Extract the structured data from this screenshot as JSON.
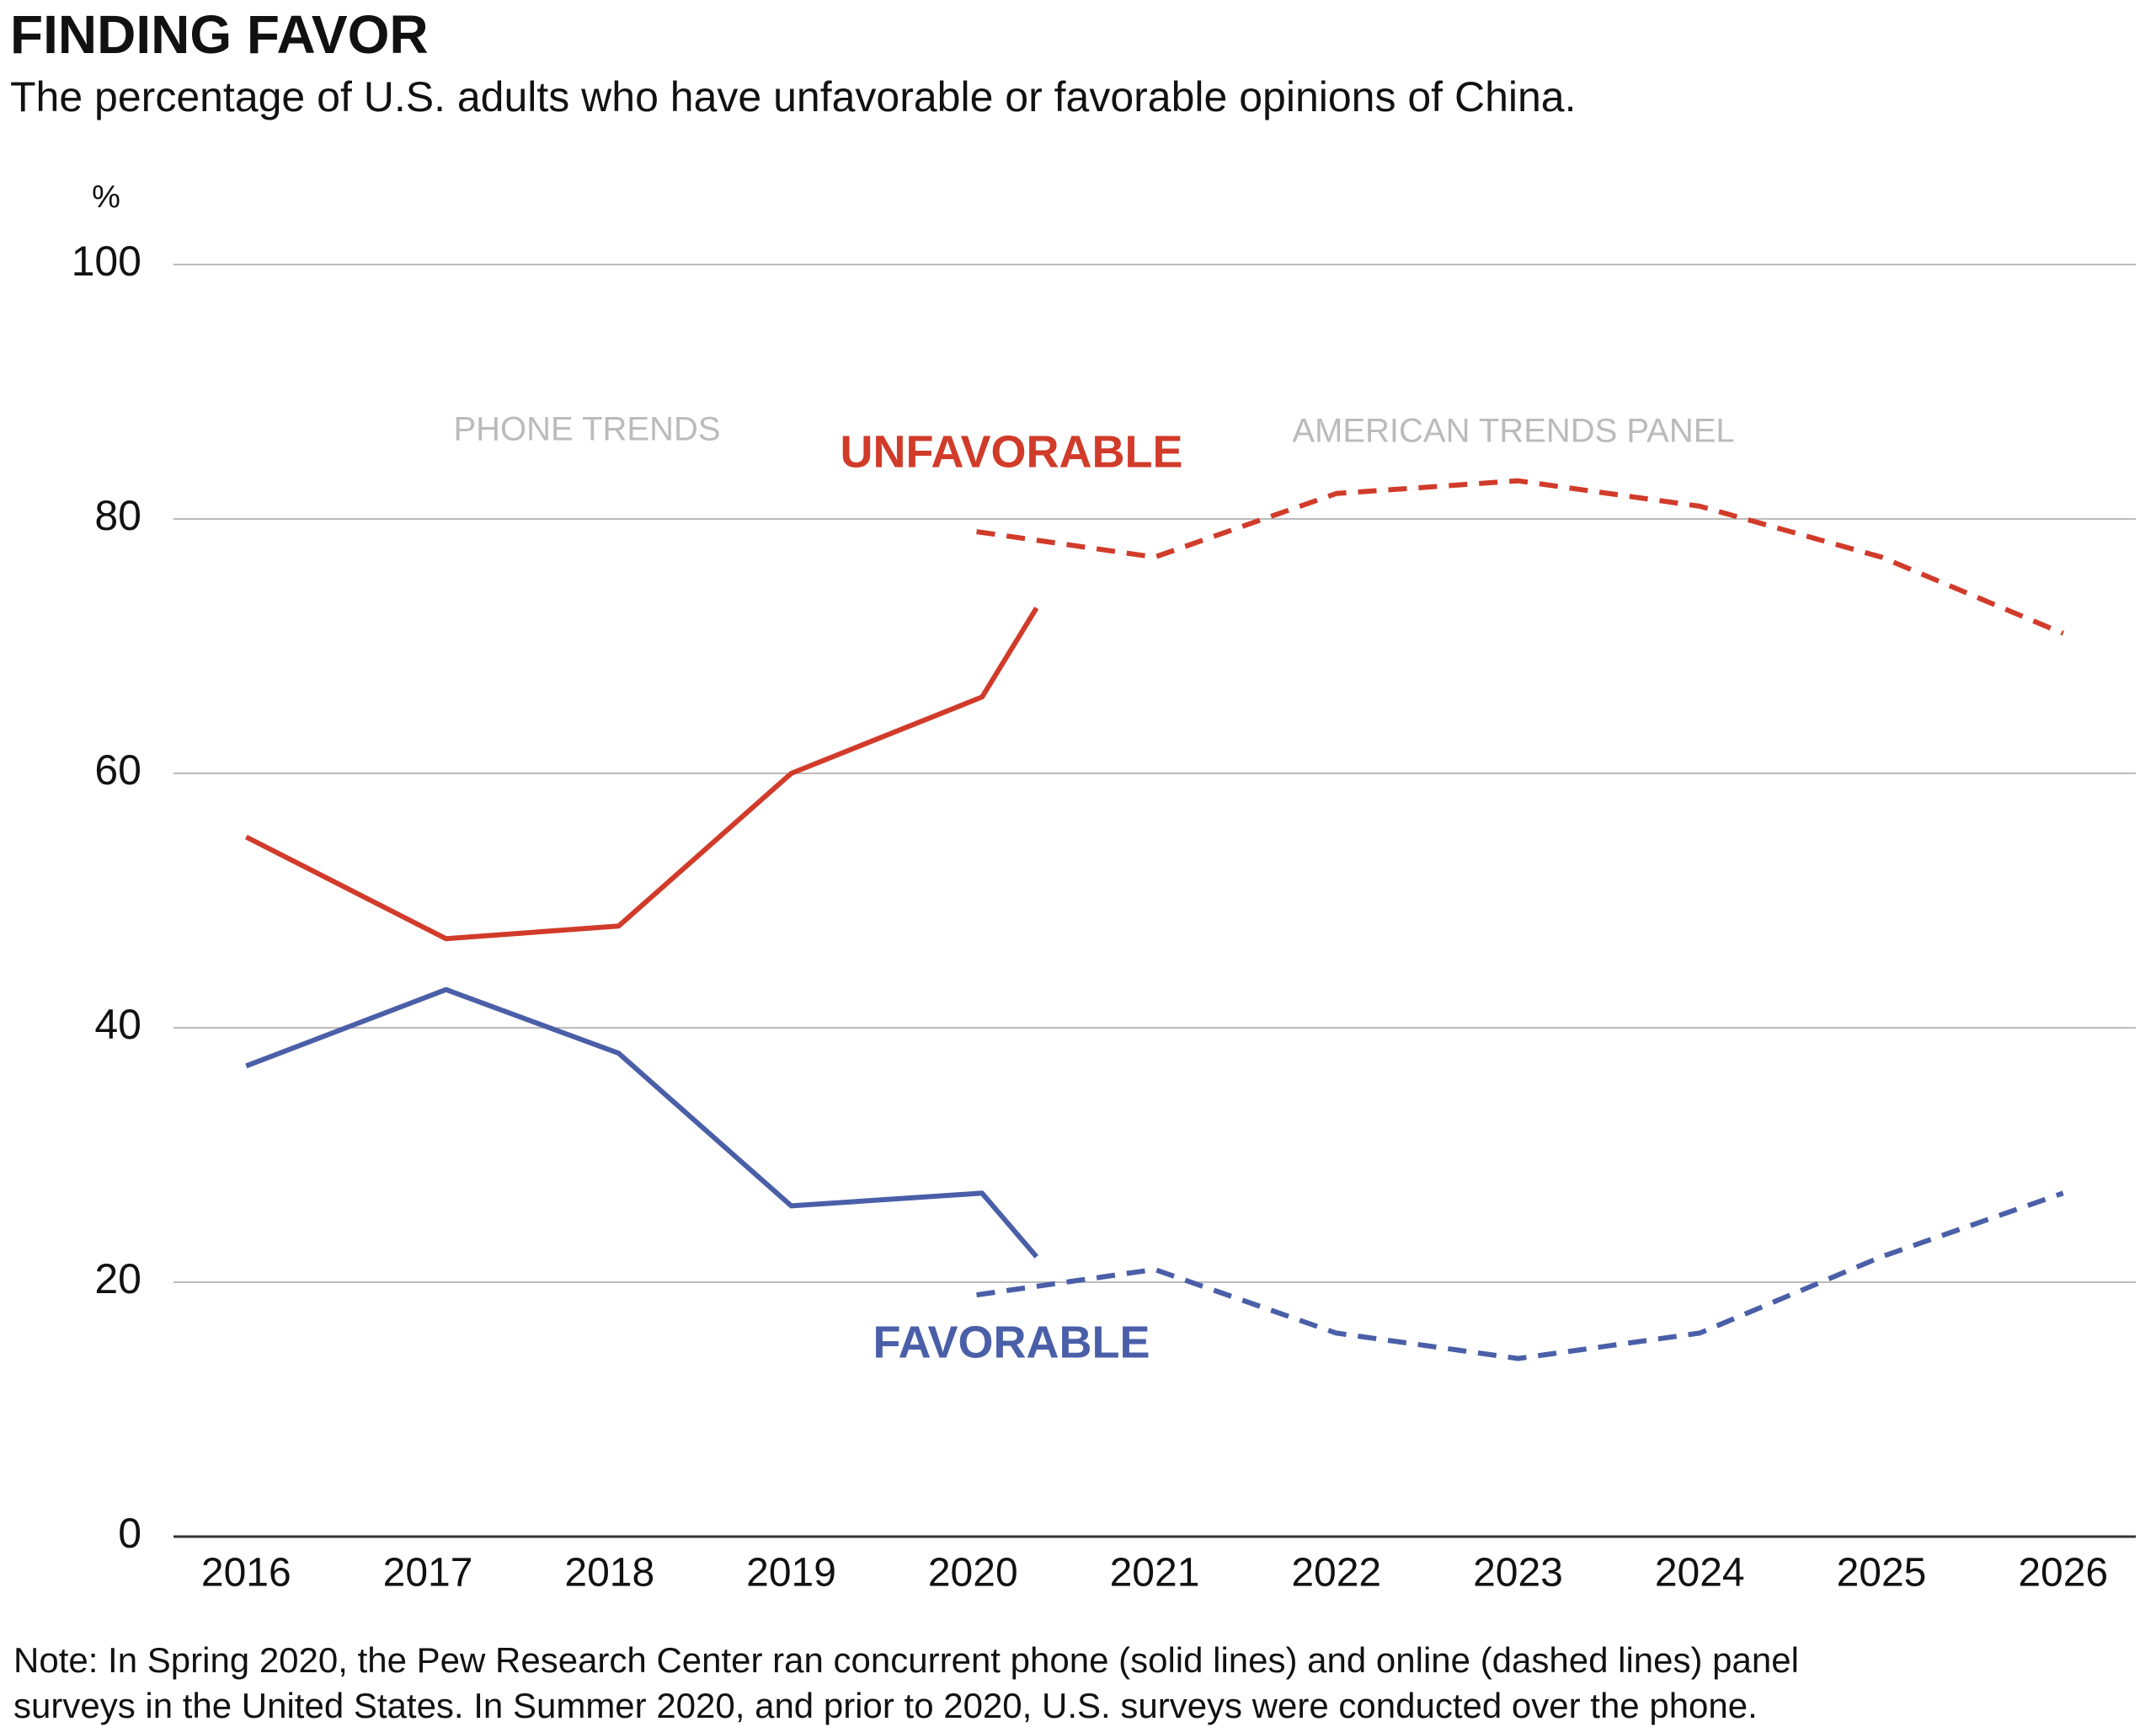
{
  "chart_data": {
    "type": "line",
    "title": "FINDING FAVOR",
    "subtitle": "The percentage of U.S. adults who have unfavorable or favorable opinions of China.",
    "y_label": "%",
    "annotations": [
      "PHONE TRENDS",
      "AMERICAN TRENDS PANEL"
    ],
    "note": [
      "Note: In Spring 2020, the Pew Research Center ran concurrent phone (solid lines) and online (dashed lines) panel",
      "surveys in the United States. In Summer 2020, and prior to 2020, U.S. surveys were conducted over the phone."
    ],
    "series": [
      {
        "name": "UNFAVORABLE",
        "color": "#d13b2a",
        "dashed": false,
        "x": [
          2016,
          2017.1,
          2018.05,
          2019,
          2020.05,
          2020.35
        ],
        "values": [
          55,
          47,
          48,
          60,
          66,
          73
        ]
      },
      {
        "color": "#d13b2a",
        "dashed": true,
        "x": [
          2020.02,
          2021,
          2022,
          2023,
          2024,
          2025,
          2026
        ],
        "values": [
          79,
          77,
          82,
          83,
          81,
          77,
          71
        ]
      },
      {
        "name": "FAVORABLE",
        "color": "#4a5fa8",
        "dashed": false,
        "x": [
          2016,
          2017.1,
          2018.05,
          2019,
          2020.05,
          2020.35
        ],
        "values": [
          37,
          43,
          38,
          26,
          27,
          22
        ]
      },
      {
        "color": "#4a5fa8",
        "dashed": true,
        "x": [
          2020.02,
          2021,
          2022,
          2023,
          2024,
          2025,
          2026
        ],
        "values": [
          19,
          21,
          16,
          14,
          16,
          22,
          27
        ]
      }
    ],
    "xlim": [
      2015.6,
      2026.4
    ],
    "xticks": [
      2016,
      2017,
      2018,
      2019,
      2020,
      2021,
      2022,
      2023,
      2024,
      2025,
      2026
    ],
    "ylim": [
      0,
      100
    ],
    "yticks": [
      0,
      20,
      40,
      60,
      80,
      100
    ],
    "grid": true
  }
}
